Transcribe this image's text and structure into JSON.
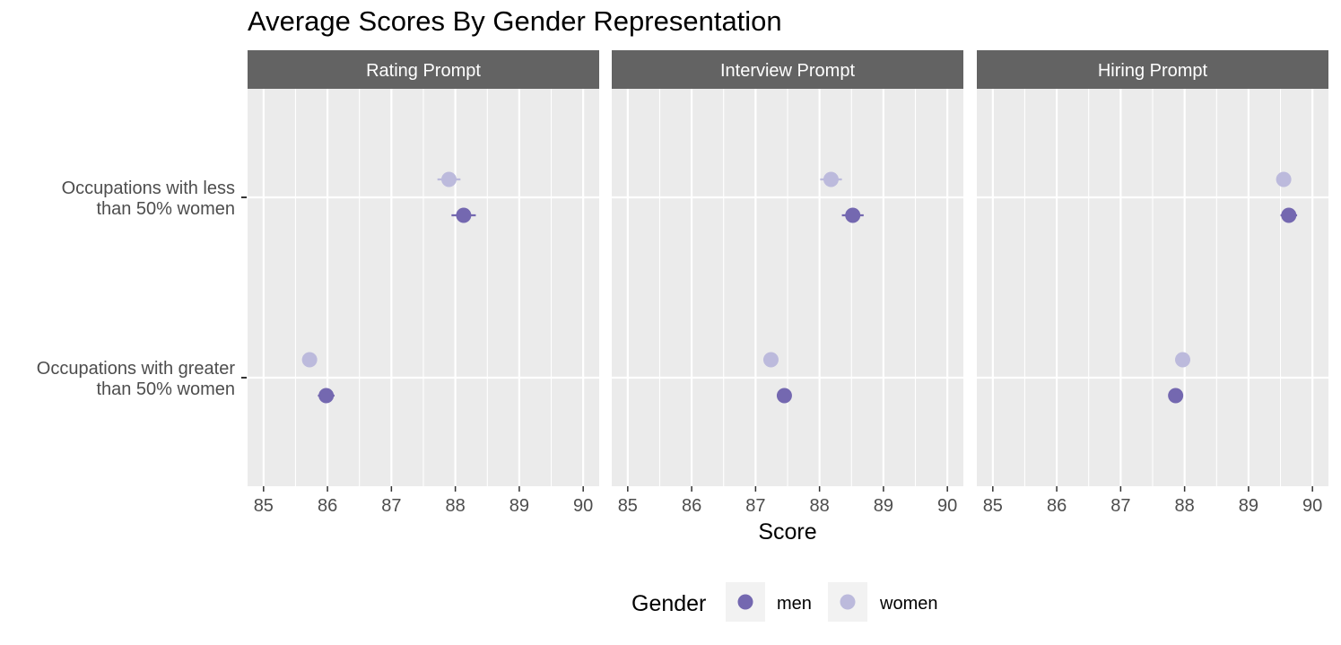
{
  "chart_data": {
    "type": "scatter",
    "title": "Average Scores By Gender Representation",
    "xlabel": "Score",
    "ylabel": "",
    "xlim": [
      84.75,
      90.25
    ],
    "x_ticks": [
      85,
      86,
      87,
      88,
      89,
      90
    ],
    "categories": [
      "Occupations with less than 50% women",
      "Occupations with greater than 50% women"
    ],
    "category_lines": [
      [
        "Occupations with less",
        "than 50% women"
      ],
      [
        "Occupations with greater",
        "than 50% women"
      ]
    ],
    "panels": [
      "Rating Prompt",
      "Interview Prompt",
      "Hiring Prompt"
    ],
    "legend": {
      "title": "Gender",
      "position": "bottom"
    },
    "grid": true,
    "colors": {
      "men": "#7468b0",
      "women": "#bcbadc",
      "panel_bg": "#ebebeb",
      "strip_bg": "#636363",
      "grid": "#ffffff"
    },
    "series": [
      {
        "name": "women",
        "points": [
          {
            "panel": "Rating Prompt",
            "category": "Occupations with less than 50% women",
            "x": 87.9,
            "err": 0.18
          },
          {
            "panel": "Rating Prompt",
            "category": "Occupations with greater than 50% women",
            "x": 85.72,
            "err": 0.09
          },
          {
            "panel": "Interview Prompt",
            "category": "Occupations with less than 50% women",
            "x": 88.18,
            "err": 0.17
          },
          {
            "panel": "Interview Prompt",
            "category": "Occupations with greater than 50% women",
            "x": 87.24,
            "err": 0.05
          },
          {
            "panel": "Hiring Prompt",
            "category": "Occupations with less than 50% women",
            "x": 89.55,
            "err": 0.1
          },
          {
            "panel": "Hiring Prompt",
            "category": "Occupations with greater than 50% women",
            "x": 87.97,
            "err": 0.04
          }
        ]
      },
      {
        "name": "men",
        "points": [
          {
            "panel": "Rating Prompt",
            "category": "Occupations with less than 50% women",
            "x": 88.13,
            "err": 0.19
          },
          {
            "panel": "Rating Prompt",
            "category": "Occupations with greater than 50% women",
            "x": 85.98,
            "err": 0.13
          },
          {
            "panel": "Interview Prompt",
            "category": "Occupations with less than 50% women",
            "x": 88.52,
            "err": 0.17
          },
          {
            "panel": "Interview Prompt",
            "category": "Occupations with greater than 50% women",
            "x": 87.45,
            "err": 0.09
          },
          {
            "panel": "Hiring Prompt",
            "category": "Occupations with less than 50% women",
            "x": 89.63,
            "err": 0.13
          },
          {
            "panel": "Hiring Prompt",
            "category": "Occupations with greater than 50% women",
            "x": 87.86,
            "err": 0.05
          }
        ]
      }
    ]
  }
}
